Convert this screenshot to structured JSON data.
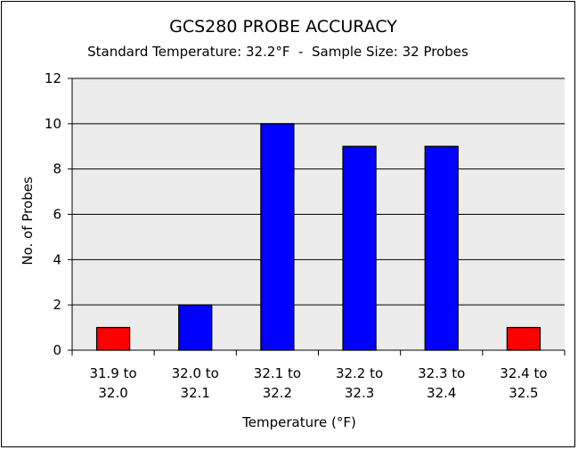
{
  "chart_data": {
    "type": "bar",
    "title": "GCS280 PROBE ACCURACY",
    "subtitle": "Standard Temperature: 32.2°F  -  Sample Size: 32 Probes",
    "xlabel": "Temperature (°F)",
    "ylabel": "No. of Probes",
    "categories": [
      [
        "31.9 to",
        "32.0"
      ],
      [
        "32.0 to",
        "32.1"
      ],
      [
        "32.1 to",
        "32.2"
      ],
      [
        "32.2 to",
        "32.3"
      ],
      [
        "32.3 to",
        "32.4"
      ],
      [
        "32.4 to",
        "32.5"
      ]
    ],
    "values": [
      1,
      2,
      10,
      9,
      9,
      1
    ],
    "bar_colors": [
      "#ff0000",
      "#0000ff",
      "#0000ff",
      "#0000ff",
      "#0000ff",
      "#ff0000"
    ],
    "ylim": [
      0,
      12
    ],
    "yticks": [
      0,
      2,
      4,
      6,
      8,
      10,
      12
    ],
    "grid": true,
    "plot_background": "#ececec",
    "legend": "none"
  }
}
